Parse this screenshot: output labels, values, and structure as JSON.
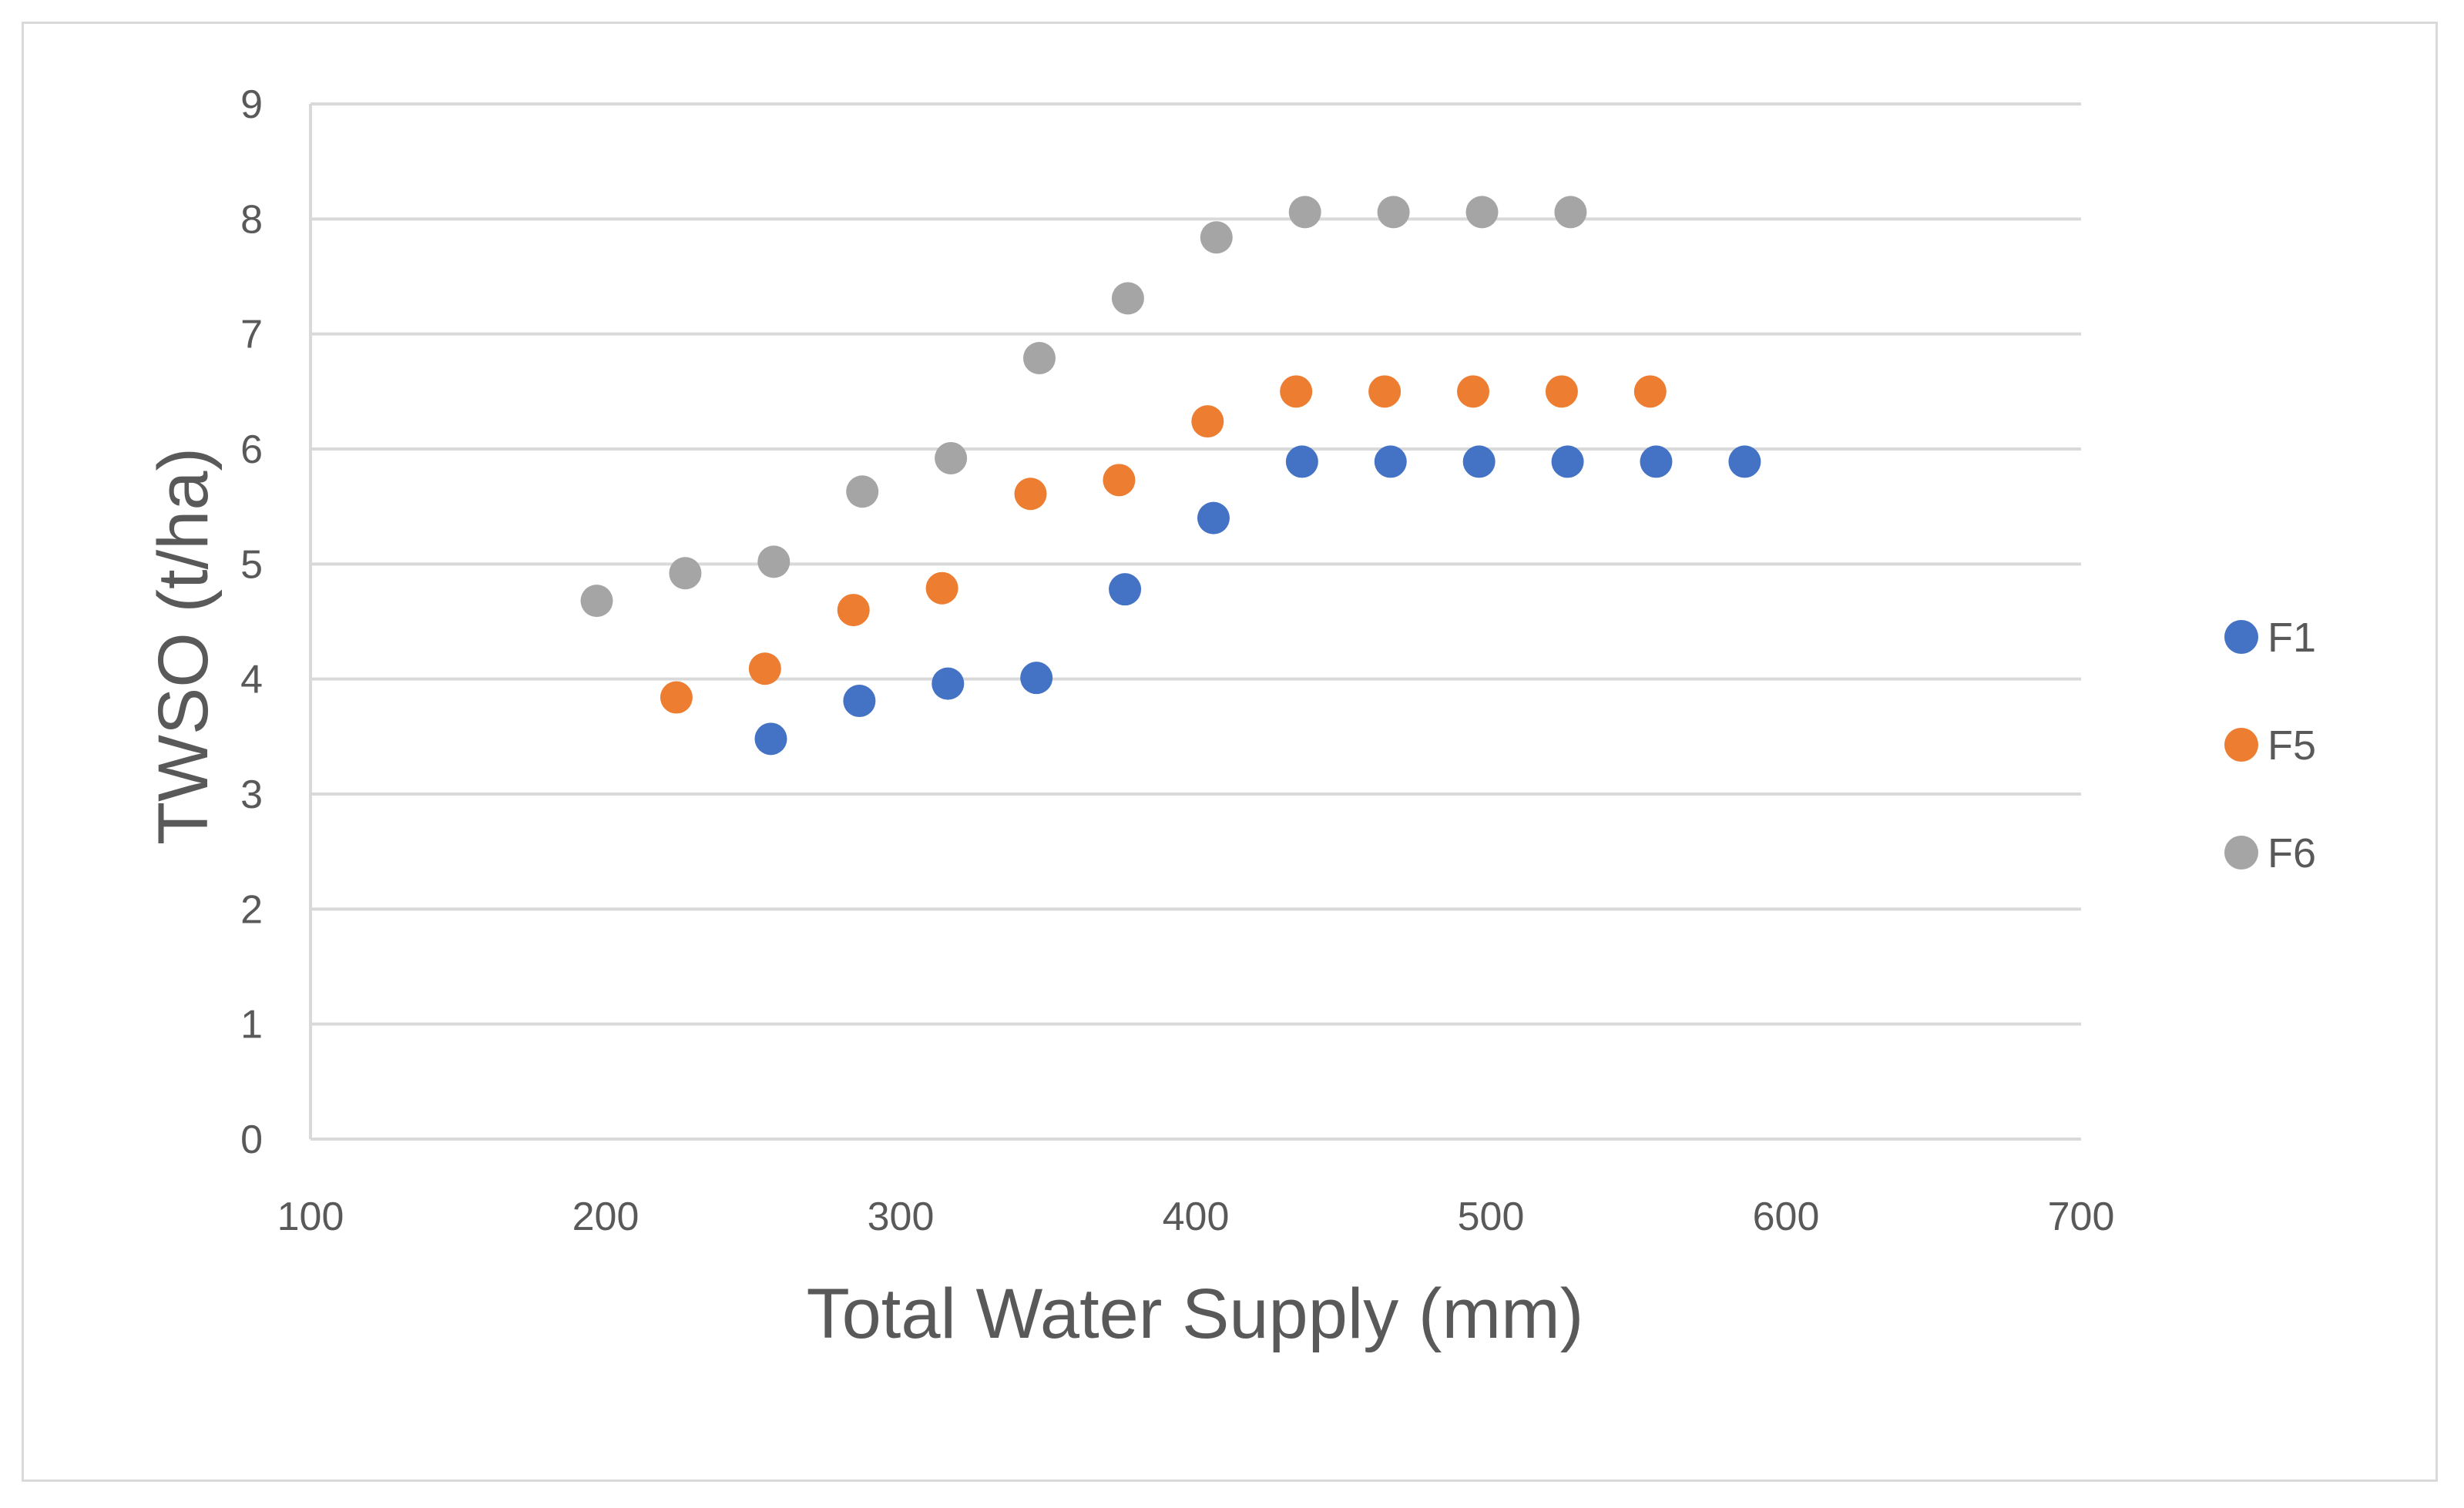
{
  "chart_data": {
    "type": "scatter",
    "title": "",
    "xlabel": "Total Water Supply (mm)",
    "ylabel": "TWSO (t/ha)",
    "xlim": [
      100,
      700
    ],
    "ylim": [
      0,
      9
    ],
    "xticks": [
      100,
      200,
      300,
      400,
      500,
      600,
      700
    ],
    "yticks": [
      0,
      1,
      2,
      3,
      4,
      5,
      6,
      7,
      8,
      9
    ],
    "grid": "horizontal",
    "legend_position": "right",
    "series": [
      {
        "name": "F1",
        "color": "#4472c4",
        "x": [
          256,
          286,
          316,
          346,
          376,
          406,
          436,
          466,
          496,
          526,
          556,
          586
        ],
        "y": [
          3.48,
          3.81,
          3.96,
          4.01,
          4.78,
          5.4,
          5.89,
          5.89,
          5.89,
          5.89,
          5.89,
          5.89
        ]
      },
      {
        "name": "F5",
        "color": "#ed7d31",
        "x": [
          224,
          254,
          284,
          314,
          344,
          374,
          404,
          434,
          464,
          494,
          524,
          554
        ],
        "y": [
          3.84,
          4.09,
          4.6,
          4.79,
          5.61,
          5.73,
          6.24,
          6.5,
          6.5,
          6.5,
          6.5,
          6.5
        ]
      },
      {
        "name": "F6",
        "color": "#a5a5a5",
        "x": [
          197,
          227,
          257,
          287,
          317,
          347,
          377,
          407,
          437,
          467,
          497,
          527
        ],
        "y": [
          4.68,
          4.92,
          5.02,
          5.63,
          5.92,
          6.79,
          7.31,
          7.84,
          8.06,
          8.06,
          8.06,
          8.06
        ]
      }
    ]
  }
}
